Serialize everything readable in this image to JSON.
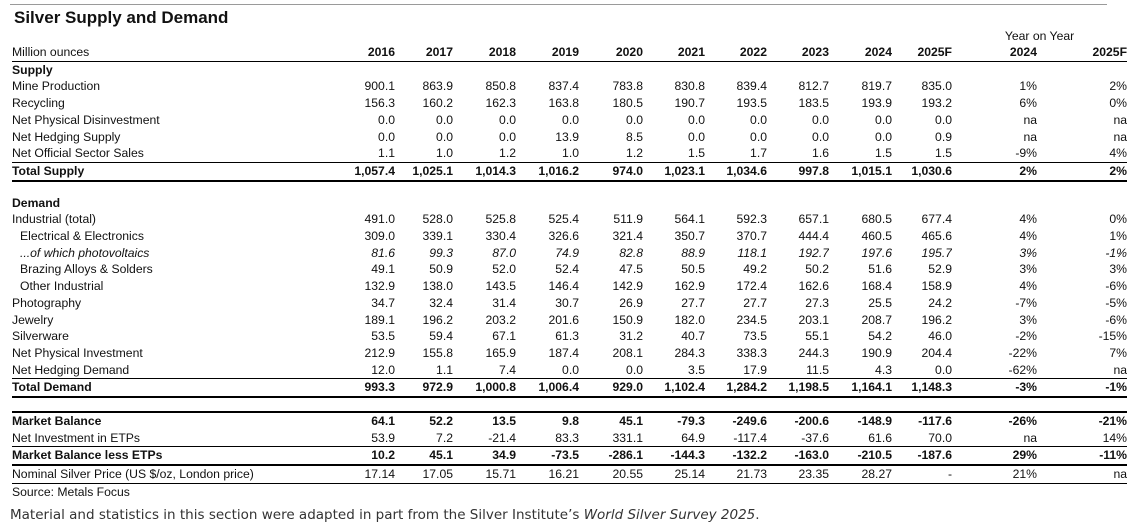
{
  "title": "Silver Supply and Demand",
  "yoy_header": "Year on Year",
  "header": {
    "label": "Million ounces",
    "years": [
      "2016",
      "2017",
      "2018",
      "2019",
      "2020",
      "2021",
      "2022",
      "2023",
      "2024",
      "2025F"
    ],
    "yoy": [
      "2024",
      "2025F"
    ]
  },
  "rows": [
    {
      "kind": "sec",
      "label": "Supply"
    },
    {
      "kind": "data",
      "label": "Mine Production",
      "values": [
        "900.1",
        "863.9",
        "850.8",
        "837.4",
        "783.8",
        "830.8",
        "839.4",
        "812.7",
        "819.7",
        "835.0"
      ],
      "yoy": [
        "1%",
        "2%"
      ]
    },
    {
      "kind": "data",
      "label": "Recycling",
      "values": [
        "156.3",
        "160.2",
        "162.3",
        "163.8",
        "180.5",
        "190.7",
        "193.5",
        "183.5",
        "193.9",
        "193.2"
      ],
      "yoy": [
        "6%",
        "0%"
      ]
    },
    {
      "kind": "data",
      "label": "Net Physical Disinvestment",
      "values": [
        "0.0",
        "0.0",
        "0.0",
        "0.0",
        "0.0",
        "0.0",
        "0.0",
        "0.0",
        "0.0",
        "0.0"
      ],
      "yoy": [
        "na",
        "na"
      ]
    },
    {
      "kind": "data",
      "label": "Net Hedging Supply",
      "values": [
        "0.0",
        "0.0",
        "0.0",
        "13.9",
        "8.5",
        "0.0",
        "0.0",
        "0.0",
        "0.0",
        "0.9"
      ],
      "yoy": [
        "na",
        "na"
      ]
    },
    {
      "kind": "data",
      "label": "Net Official Sector Sales",
      "values": [
        "1.1",
        "1.0",
        "1.2",
        "1.0",
        "1.2",
        "1.5",
        "1.7",
        "1.6",
        "1.5",
        "1.5"
      ],
      "yoy": [
        "-9%",
        "4%"
      ]
    },
    {
      "kind": "total",
      "label": "Total Supply",
      "values": [
        "1,057.4",
        "1,025.1",
        "1,014.3",
        "1,016.2",
        "974.0",
        "1,023.1",
        "1,034.6",
        "997.8",
        "1,015.1",
        "1,030.6"
      ],
      "yoy": [
        "2%",
        "2%"
      ]
    },
    {
      "kind": "gap"
    },
    {
      "kind": "sec",
      "label": "Demand"
    },
    {
      "kind": "data",
      "label": "Industrial (total)",
      "values": [
        "491.0",
        "528.0",
        "525.8",
        "525.4",
        "511.9",
        "564.1",
        "592.3",
        "657.1",
        "680.5",
        "677.4"
      ],
      "yoy": [
        "4%",
        "0%"
      ]
    },
    {
      "kind": "ind",
      "label": "Electrical & Electronics",
      "values": [
        "309.0",
        "339.1",
        "330.4",
        "326.6",
        "321.4",
        "350.7",
        "370.7",
        "444.4",
        "460.5",
        "465.6"
      ],
      "yoy": [
        "4%",
        "1%"
      ]
    },
    {
      "kind": "ital",
      "label": "...of which photovoltaics",
      "values": [
        "81.6",
        "99.3",
        "87.0",
        "74.9",
        "82.8",
        "88.9",
        "118.1",
        "192.7",
        "197.6",
        "195.7"
      ],
      "yoy": [
        "3%",
        "-1%"
      ]
    },
    {
      "kind": "ind",
      "label": "Brazing Alloys & Solders",
      "values": [
        "49.1",
        "50.9",
        "52.0",
        "52.4",
        "47.5",
        "50.5",
        "49.2",
        "50.2",
        "51.6",
        "52.9"
      ],
      "yoy": [
        "3%",
        "3%"
      ]
    },
    {
      "kind": "ind",
      "label": "Other Industrial",
      "values": [
        "132.9",
        "138.0",
        "143.5",
        "146.4",
        "142.9",
        "162.9",
        "172.4",
        "162.6",
        "168.4",
        "158.9"
      ],
      "yoy": [
        "4%",
        "-6%"
      ]
    },
    {
      "kind": "data",
      "label": "Photography",
      "values": [
        "34.7",
        "32.4",
        "31.4",
        "30.7",
        "26.9",
        "27.7",
        "27.7",
        "27.3",
        "25.5",
        "24.2"
      ],
      "yoy": [
        "-7%",
        "-5%"
      ]
    },
    {
      "kind": "data",
      "label": "Jewelry",
      "values": [
        "189.1",
        "196.2",
        "203.2",
        "201.6",
        "150.9",
        "182.0",
        "234.5",
        "203.1",
        "208.7",
        "196.2"
      ],
      "yoy": [
        "3%",
        "-6%"
      ]
    },
    {
      "kind": "data",
      "label": "Silverware",
      "values": [
        "53.5",
        "59.4",
        "67.1",
        "61.3",
        "31.2",
        "40.7",
        "73.5",
        "55.1",
        "54.2",
        "46.0"
      ],
      "yoy": [
        "-2%",
        "-15%"
      ]
    },
    {
      "kind": "data",
      "label": "Net Physical Investment",
      "values": [
        "212.9",
        "155.8",
        "165.9",
        "187.4",
        "208.1",
        "284.3",
        "338.3",
        "244.3",
        "190.9",
        "204.4"
      ],
      "yoy": [
        "-22%",
        "7%"
      ]
    },
    {
      "kind": "data",
      "label": "Net Hedging Demand",
      "values": [
        "12.0",
        "1.1",
        "7.4",
        "0.0",
        "0.0",
        "3.5",
        "17.9",
        "11.5",
        "4.3",
        "0.0"
      ],
      "yoy": [
        "-62%",
        "na"
      ]
    },
    {
      "kind": "total",
      "label": "Total Demand",
      "values": [
        "993.3",
        "972.9",
        "1,000.8",
        "1,006.4",
        "929.0",
        "1,102.4",
        "1,284.2",
        "1,198.5",
        "1,164.1",
        "1,148.3"
      ],
      "yoy": [
        "-3%",
        "-1%"
      ]
    },
    {
      "kind": "gap"
    },
    {
      "kind": "mb",
      "label": "Market Balance",
      "values": [
        "64.1",
        "52.2",
        "13.5",
        "9.8",
        "45.1",
        "-79.3",
        "-249.6",
        "-200.6",
        "-148.9",
        "-117.6"
      ],
      "yoy": [
        "-26%",
        "-21%"
      ]
    },
    {
      "kind": "data",
      "label": "Net Investment in ETPs",
      "values": [
        "53.9",
        "7.2",
        "-21.4",
        "83.3",
        "331.1",
        "64.9",
        "-117.4",
        "-37.6",
        "61.6",
        "70.0"
      ],
      "yoy": [
        "na",
        "14%"
      ]
    },
    {
      "kind": "mbl",
      "label": "Market Balance less ETPs",
      "values": [
        "10.2",
        "45.1",
        "34.9",
        "-73.5",
        "-286.1",
        "-144.3",
        "-132.2",
        "-163.0",
        "-210.5",
        "-187.6"
      ],
      "yoy": [
        "29%",
        "-11%"
      ]
    },
    {
      "kind": "nsp",
      "label": "Nominal Silver Price (US $/oz, London price)",
      "values": [
        "17.14",
        "17.05",
        "15.71",
        "16.21",
        "20.55",
        "25.14",
        "21.73",
        "23.35",
        "28.27",
        "-"
      ],
      "yoy": [
        "21%",
        "na"
      ]
    },
    {
      "kind": "src",
      "label": "Source: Metals Focus"
    }
  ],
  "footnote": {
    "prefix": "Material and statistics in this section were adapted in part from the Silver Institute’s ",
    "italic": "World Silver Survey 2025",
    "suffix": "."
  }
}
